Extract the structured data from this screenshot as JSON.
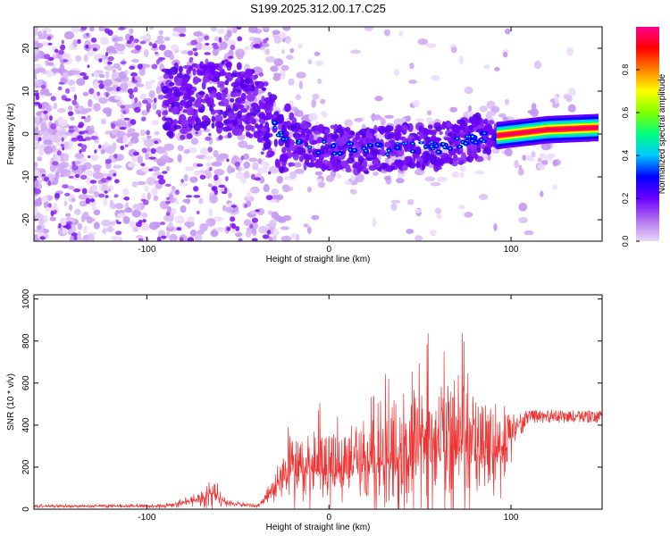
{
  "title": "S199.2025.312.00.17.C25",
  "chart_data": [
    {
      "type": "heatmap",
      "xlabel": "Height of straight line (km)",
      "ylabel": "Frequency (Hz)",
      "xlim": [
        -162,
        150
      ],
      "ylim": [
        -25,
        25
      ],
      "x_ticks": [
        -100,
        0,
        100
      ],
      "y_ticks": [
        -20,
        -10,
        0,
        10,
        20
      ],
      "colorbar": {
        "label": "Normalized spectral amplitude",
        "range": [
          0.0,
          1.0
        ],
        "ticks": [
          "0.0",
          "0.2",
          "0.4",
          "0.6",
          "0.8"
        ],
        "colors": [
          "#e8d8f8",
          "#b070f0",
          "#6a00ff",
          "#0000ff",
          "#00c8ff",
          "#00ff80",
          "#80ff00",
          "#ffff00",
          "#ff8000",
          "#ff0000",
          "#ff0090"
        ]
      },
      "ridge": {
        "description_points": [
          {
            "x": -80,
            "y": 8
          },
          {
            "x": -60,
            "y": 9
          },
          {
            "x": -40,
            "y": 7
          },
          {
            "x": -25,
            "y": -1
          },
          {
            "x": -10,
            "y": -3
          },
          {
            "x": 0,
            "y": -3
          },
          {
            "x": 20,
            "y": -4
          },
          {
            "x": 40,
            "y": -3
          },
          {
            "x": 60,
            "y": -3
          },
          {
            "x": 80,
            "y": -1
          },
          {
            "x": 100,
            "y": 0
          },
          {
            "x": 120,
            "y": 1
          },
          {
            "x": 148,
            "y": 1.5
          }
        ]
      }
    },
    {
      "type": "line",
      "xlabel": "Height of straight line (km)",
      "ylabel": "SNR (10 * v/v)",
      "xlim": [
        -162,
        150
      ],
      "ylim": [
        0,
        1020
      ],
      "x_ticks": [
        -100,
        0,
        100
      ],
      "y_ticks": [
        0,
        200,
        400,
        600,
        800,
        1000
      ],
      "series_color": "#ee3333",
      "envelope": [
        {
          "x": -162,
          "base": 15,
          "amp": 15
        },
        {
          "x": -90,
          "base": 15,
          "amp": 20
        },
        {
          "x": -75,
          "base": 40,
          "amp": 60
        },
        {
          "x": -63,
          "base": 80,
          "amp": 170
        },
        {
          "x": -57,
          "base": 30,
          "amp": 40
        },
        {
          "x": -40,
          "base": 15,
          "amp": 20
        },
        {
          "x": -33,
          "base": 60,
          "amp": 100
        },
        {
          "x": -25,
          "base": 150,
          "amp": 250
        },
        {
          "x": -10,
          "base": 180,
          "amp": 420
        },
        {
          "x": 0,
          "base": 150,
          "amp": 400
        },
        {
          "x": 20,
          "base": 180,
          "amp": 450
        },
        {
          "x": 40,
          "base": 200,
          "amp": 600
        },
        {
          "x": 55,
          "base": 220,
          "amp": 650
        },
        {
          "x": 70,
          "base": 230,
          "amp": 780
        },
        {
          "x": 80,
          "base": 230,
          "amp": 600
        },
        {
          "x": 95,
          "base": 250,
          "amp": 400
        },
        {
          "x": 105,
          "base": 420,
          "amp": 80
        },
        {
          "x": 110,
          "base": 440,
          "amp": 30
        },
        {
          "x": 150,
          "base": 440,
          "amp": 30
        }
      ]
    }
  ]
}
